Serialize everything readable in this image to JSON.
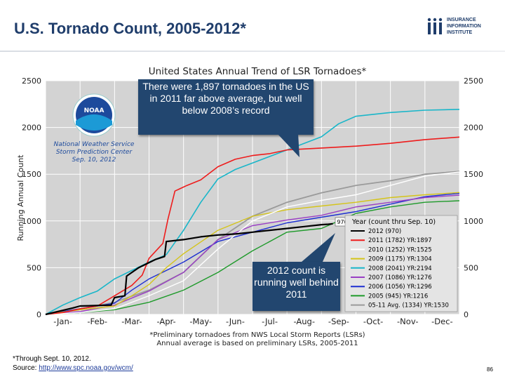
{
  "header": {
    "title": "U.S. Tornado Count, 2005-2012*",
    "logo": {
      "line1": "INSURANCE",
      "line2": "INFORMATION",
      "line3": "INSTITUTE",
      "mark": "iii"
    }
  },
  "chart_data": {
    "type": "line",
    "title": "United States Annual Trend of LSR Tornadoes*",
    "ylabel": "Running Annual Count",
    "xlabel": "",
    "ylim": [
      0,
      2500
    ],
    "yticks": [
      "0",
      "500",
      "1000",
      "1500",
      "2000",
      "2500"
    ],
    "categories": [
      "-Jan-",
      "-Feb-",
      "-Mar-",
      "-Apr-",
      "-May-",
      "-Jun-",
      "-Jul-",
      "-Aug-",
      "-Sep-",
      "-Oct-",
      "-Nov-",
      "-Dec-"
    ],
    "x_unit": "month (0 = Jan 1, 12 = Dec 31)",
    "grid": true,
    "legend_title": "Year (count thru Sep. 10)",
    "legend_position": "bottom-right",
    "noaa": {
      "line1": "National Weather Service",
      "line2": "Storm Prediction Center",
      "line3": "Sep. 10, 2012",
      "badge": "NOAA"
    },
    "marker_label": "970",
    "footer_line1": "*Preliminary tornadoes from NWS Local Storm Reports (LSRs)",
    "footer_line2": "Annual average is based on preliminary LSRs, 2005-2011",
    "series": [
      {
        "name": "2012 (970)",
        "color": "#000000",
        "width": 2.2,
        "x": [
          0,
          0.8,
          1.0,
          1.9,
          2.0,
          2.3,
          2.35,
          2.7,
          3.2,
          3.45,
          3.5,
          4.0,
          4.5,
          5.0,
          5.5,
          6.0,
          6.5,
          7.0,
          7.5,
          8.0,
          8.2,
          8.33
        ],
        "y": [
          0,
          70,
          90,
          100,
          180,
          200,
          410,
          500,
          590,
          620,
          780,
          800,
          830,
          850,
          860,
          880,
          900,
          920,
          940,
          960,
          965,
          970
        ]
      },
      {
        "name": "2011 (1782) YR:1897",
        "color": "#ee1c1c",
        "width": 1.6,
        "x": [
          0,
          0.5,
          1.0,
          1.5,
          2.0,
          2.5,
          2.8,
          3.0,
          3.4,
          3.55,
          3.75,
          4.1,
          4.5,
          5.0,
          5.5,
          6.0,
          6.5,
          7.0,
          8.0,
          9.0,
          10.0,
          10.5,
          11.0,
          12.0
        ],
        "y": [
          0,
          20,
          60,
          90,
          200,
          310,
          420,
          600,
          760,
          1020,
          1320,
          1380,
          1440,
          1580,
          1660,
          1700,
          1720,
          1760,
          1780,
          1800,
          1830,
          1850,
          1870,
          1897
        ]
      },
      {
        "name": "2010 (1252) YR:1525",
        "color": "#ffffff",
        "width": 1.4,
        "x": [
          0,
          1.0,
          2.0,
          3.0,
          4.0,
          5.0,
          6.0,
          7.0,
          8.0,
          9.0,
          10.0,
          11.0,
          12.0
        ],
        "y": [
          0,
          20,
          60,
          200,
          360,
          700,
          1000,
          1150,
          1220,
          1280,
          1380,
          1480,
          1525
        ]
      },
      {
        "name": "2009 (1175) YR:1304",
        "color": "#d4c41a",
        "width": 1.4,
        "x": [
          0,
          1.0,
          2.0,
          2.5,
          3.0,
          3.5,
          4.0,
          5.0,
          6.0,
          7.0,
          8.0,
          9.0,
          10.0,
          11.0,
          12.0
        ],
        "y": [
          0,
          50,
          90,
          200,
          320,
          500,
          650,
          900,
          1050,
          1120,
          1160,
          1200,
          1250,
          1280,
          1304
        ]
      },
      {
        "name": "2008 (2041) YR:2194",
        "color": "#19b6c9",
        "width": 1.6,
        "x": [
          0,
          0.5,
          1.0,
          1.5,
          2.0,
          2.5,
          3.0,
          3.5,
          4.0,
          4.5,
          5.0,
          5.5,
          6.0,
          7.0,
          8.0,
          8.5,
          9.0,
          10.0,
          11.0,
          12.0
        ],
        "y": [
          0,
          100,
          180,
          250,
          380,
          470,
          560,
          640,
          900,
          1200,
          1450,
          1550,
          1620,
          1760,
          1900,
          2040,
          2120,
          2160,
          2185,
          2194
        ]
      },
      {
        "name": "2007 (1086) YR:1276",
        "color": "#9a3fc4",
        "width": 1.4,
        "x": [
          0,
          1.0,
          2.0,
          3.0,
          4.0,
          5.0,
          6.0,
          7.0,
          8.0,
          9.0,
          10.0,
          11.0,
          12.0
        ],
        "y": [
          0,
          30,
          100,
          250,
          450,
          800,
          950,
          1010,
          1060,
          1150,
          1200,
          1250,
          1276
        ]
      },
      {
        "name": "2006 (1056) YR:1296",
        "color": "#1d2fd1",
        "width": 1.4,
        "x": [
          0,
          1.0,
          2.0,
          2.5,
          3.0,
          4.0,
          5.0,
          6.0,
          7.0,
          8.0,
          9.0,
          10.0,
          11.0,
          12.0
        ],
        "y": [
          0,
          60,
          120,
          260,
          380,
          560,
          780,
          880,
          980,
          1040,
          1100,
          1180,
          1260,
          1296
        ]
      },
      {
        "name": "2005 (945) YR:1216",
        "color": "#1e9a2a",
        "width": 1.4,
        "x": [
          0,
          1.0,
          2.0,
          3.0,
          4.0,
          5.0,
          6.0,
          7.0,
          8.0,
          9.0,
          10.0,
          11.0,
          12.0
        ],
        "y": [
          0,
          20,
          50,
          130,
          260,
          450,
          680,
          880,
          920,
          1080,
          1150,
          1200,
          1216
        ]
      },
      {
        "name": "05-11 Avg. (1334) YR:1530",
        "color": "#9a9a9a",
        "width": 1.8,
        "x": [
          0,
          1.0,
          2.0,
          3.0,
          4.0,
          5.0,
          6.0,
          7.0,
          8.0,
          9.0,
          10.0,
          11.0,
          12.0
        ],
        "y": [
          0,
          60,
          130,
          260,
          450,
          800,
          1050,
          1200,
          1300,
          1380,
          1430,
          1500,
          1530
        ]
      }
    ]
  },
  "callouts": {
    "c1": "There were 1,897 tornadoes in the US in 2011 far above average, but well below 2008’s record",
    "c2": "2012 count is running well behind 2011"
  },
  "footnote": {
    "line1": "*Through Sept. 10, 2012.",
    "source_label": "Source:",
    "source_link": "http://www.spc.noaa.gov/wcm/"
  },
  "page_number": "86"
}
